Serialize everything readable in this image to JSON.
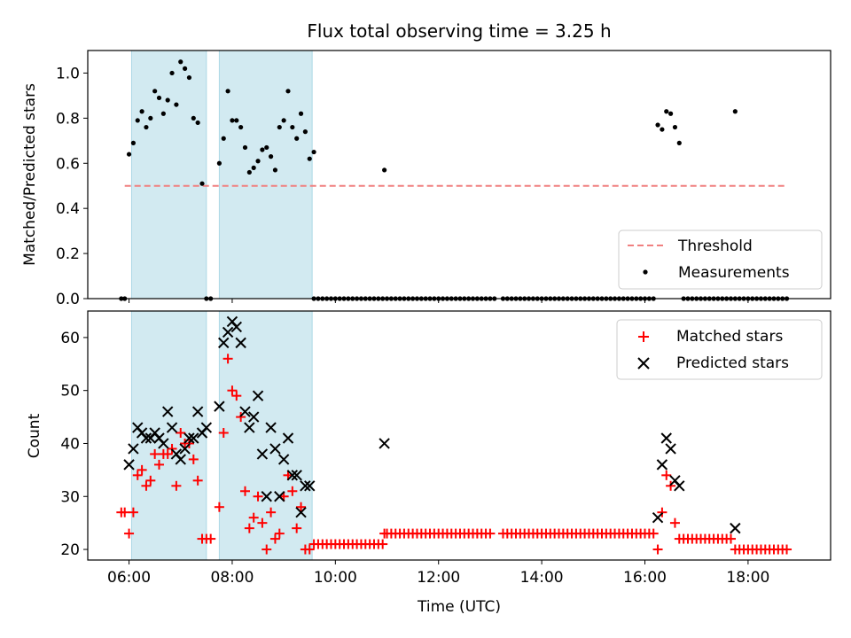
{
  "chart_data": [
    {
      "type": "scatter",
      "title": "Flux total observing time = 3.25 h",
      "ylabel": "Matched/Predicted stars",
      "xlabel": "",
      "ylim": [
        0,
        1.1
      ],
      "yticks": [
        "0.0",
        "0.2",
        "0.4",
        "0.6",
        "0.8",
        "1.0"
      ],
      "xlim_hours": [
        5.2,
        19.6
      ],
      "xticks": [
        "06:00",
        "08:00",
        "10:00",
        "12:00",
        "14:00",
        "16:00",
        "18:00"
      ],
      "shaded_spans": [
        [
          "06:03",
          "07:30"
        ],
        [
          "07:45",
          "09:33"
        ]
      ],
      "shade_color": "#add8e6",
      "threshold": {
        "name": "Threshold",
        "value": 0.5,
        "x_range": [
          "05:55",
          "18:45"
        ],
        "color": "#f08080"
      },
      "measurements": {
        "name": "Measurements",
        "color": "#000000",
        "points": [
          [
            "05:51",
            0
          ],
          [
            "05:55",
            0
          ],
          [
            "06:00",
            0.64
          ],
          [
            "06:05",
            0.69
          ],
          [
            "06:10",
            0.79
          ],
          [
            "06:15",
            0.83
          ],
          [
            "06:20",
            0.76
          ],
          [
            "06:25",
            0.8
          ],
          [
            "06:30",
            0.92
          ],
          [
            "06:35",
            0.89
          ],
          [
            "06:40",
            0.82
          ],
          [
            "06:45",
            0.88
          ],
          [
            "06:50",
            1.0
          ],
          [
            "06:55",
            0.86
          ],
          [
            "07:00",
            1.05
          ],
          [
            "07:05",
            1.02
          ],
          [
            "07:10",
            0.98
          ],
          [
            "07:15",
            0.8
          ],
          [
            "07:20",
            0.78
          ],
          [
            "07:25",
            0.51
          ],
          [
            "07:30",
            0
          ],
          [
            "07:35",
            0
          ],
          [
            "07:45",
            0.6
          ],
          [
            "07:50",
            0.71
          ],
          [
            "07:55",
            0.92
          ],
          [
            "08:00",
            0.79
          ],
          [
            "08:05",
            0.79
          ],
          [
            "08:10",
            0.76
          ],
          [
            "08:15",
            0.67
          ],
          [
            "08:20",
            0.56
          ],
          [
            "08:25",
            0.58
          ],
          [
            "08:30",
            0.61
          ],
          [
            "08:35",
            0.66
          ],
          [
            "08:40",
            0.67
          ],
          [
            "08:45",
            0.63
          ],
          [
            "08:50",
            0.57
          ],
          [
            "08:55",
            0.76
          ],
          [
            "09:00",
            0.79
          ],
          [
            "09:05",
            0.92
          ],
          [
            "09:10",
            0.76
          ],
          [
            "09:15",
            0.71
          ],
          [
            "09:20",
            0.82
          ],
          [
            "09:25",
            0.74
          ],
          [
            "09:30",
            0.62
          ],
          [
            "09:35",
            0.65
          ],
          [
            "10:57",
            0.57
          ],
          [
            "16:15",
            0.77
          ],
          [
            "16:20",
            0.75
          ],
          [
            "16:25",
            0.83
          ],
          [
            "16:30",
            0.82
          ],
          [
            "16:35",
            0.76
          ],
          [
            "16:40",
            0.69
          ],
          [
            "17:45",
            0.83
          ]
        ],
        "zero_ranges": [
          [
            "09:35",
            "10:30"
          ],
          [
            "10:35",
            "10:57"
          ],
          [
            "11:00",
            "12:40"
          ],
          [
            "12:45",
            "13:05"
          ],
          [
            "13:15",
            "16:10"
          ],
          [
            "16:45",
            "17:40"
          ],
          [
            "17:45",
            "18:45"
          ]
        ]
      },
      "legend": "lower-right"
    },
    {
      "type": "scatter",
      "title": "",
      "ylabel": "Count",
      "xlabel": "Time (UTC)",
      "ylim": [
        18,
        65
      ],
      "yticks": [
        "20",
        "30",
        "40",
        "50",
        "60"
      ],
      "xlim_hours": [
        5.2,
        19.6
      ],
      "xticks": [
        "06:00",
        "08:00",
        "10:00",
        "12:00",
        "14:00",
        "16:00",
        "18:00"
      ],
      "shaded_spans": [
        [
          "06:03",
          "07:30"
        ],
        [
          "07:45",
          "09:33"
        ]
      ],
      "series": [
        {
          "name": "Matched stars",
          "marker": "plus",
          "color": "#ff0000",
          "points": [
            [
              "05:51",
              27
            ],
            [
              "05:55",
              27
            ],
            [
              "06:00",
              23
            ],
            [
              "06:05",
              27
            ],
            [
              "06:10",
              34
            ],
            [
              "06:15",
              35
            ],
            [
              "06:20",
              32
            ],
            [
              "06:25",
              33
            ],
            [
              "06:30",
              38
            ],
            [
              "06:35",
              36
            ],
            [
              "06:40",
              38
            ],
            [
              "06:45",
              38
            ],
            [
              "06:50",
              39
            ],
            [
              "06:55",
              32
            ],
            [
              "07:00",
              42
            ],
            [
              "07:05",
              40
            ],
            [
              "07:10",
              40
            ],
            [
              "07:15",
              37
            ],
            [
              "07:20",
              33
            ],
            [
              "07:25",
              22
            ],
            [
              "07:30",
              22
            ],
            [
              "07:35",
              22
            ],
            [
              "07:45",
              28
            ],
            [
              "07:50",
              42
            ],
            [
              "07:55",
              56
            ],
            [
              "08:00",
              50
            ],
            [
              "08:05",
              49
            ],
            [
              "08:10",
              45
            ],
            [
              "08:15",
              31
            ],
            [
              "08:20",
              24
            ],
            [
              "08:25",
              26
            ],
            [
              "08:30",
              30
            ],
            [
              "08:35",
              25
            ],
            [
              "08:40",
              20
            ],
            [
              "08:45",
              27
            ],
            [
              "08:50",
              22
            ],
            [
              "08:55",
              23
            ],
            [
              "09:00",
              30
            ],
            [
              "09:05",
              34
            ],
            [
              "09:10",
              31
            ],
            [
              "09:15",
              24
            ],
            [
              "09:20",
              28
            ],
            [
              "09:25",
              20
            ],
            [
              "09:30",
              20
            ],
            [
              "09:35",
              21
            ],
            [
              "10:57",
              23
            ],
            [
              "16:15",
              20
            ],
            [
              "16:20",
              27
            ],
            [
              "16:25",
              34
            ],
            [
              "16:30",
              32
            ],
            [
              "16:35",
              25
            ],
            [
              "16:40",
              22
            ],
            [
              "17:45",
              20
            ]
          ],
          "baseline_runs": [
            {
              "from": "09:40",
              "to": "10:55",
              "value": 21
            },
            {
              "from": "11:00",
              "to": "12:40",
              "value": 23
            },
            {
              "from": "12:45",
              "to": "13:00",
              "value": 23
            },
            {
              "from": "13:15",
              "to": "16:10",
              "value": 23
            },
            {
              "from": "16:45",
              "to": "17:40",
              "value": 22
            },
            {
              "from": "17:50",
              "to": "18:45",
              "value": 20
            }
          ]
        },
        {
          "name": "Predicted stars",
          "marker": "x",
          "color": "#000000",
          "points": [
            [
              "06:00",
              36
            ],
            [
              "06:05",
              39
            ],
            [
              "06:10",
              43
            ],
            [
              "06:15",
              42
            ],
            [
              "06:20",
              41
            ],
            [
              "06:25",
              41
            ],
            [
              "06:30",
              42
            ],
            [
              "06:35",
              41
            ],
            [
              "06:40",
              40
            ],
            [
              "06:45",
              46
            ],
            [
              "06:50",
              43
            ],
            [
              "06:55",
              38
            ],
            [
              "07:00",
              37
            ],
            [
              "07:05",
              39
            ],
            [
              "07:10",
              41
            ],
            [
              "07:15",
              41
            ],
            [
              "07:20",
              46
            ],
            [
              "07:25",
              42
            ],
            [
              "07:30",
              43
            ],
            [
              "07:45",
              47
            ],
            [
              "07:50",
              59
            ],
            [
              "07:55",
              61
            ],
            [
              "08:00",
              63
            ],
            [
              "08:05",
              62
            ],
            [
              "08:10",
              59
            ],
            [
              "08:15",
              46
            ],
            [
              "08:20",
              43
            ],
            [
              "08:25",
              45
            ],
            [
              "08:30",
              49
            ],
            [
              "08:35",
              38
            ],
            [
              "08:40",
              30
            ],
            [
              "08:45",
              43
            ],
            [
              "08:50",
              39
            ],
            [
              "08:55",
              30
            ],
            [
              "09:00",
              37
            ],
            [
              "09:05",
              41
            ],
            [
              "09:10",
              34
            ],
            [
              "09:15",
              34
            ],
            [
              "09:20",
              27
            ],
            [
              "09:25",
              32
            ],
            [
              "09:30",
              32
            ],
            [
              "10:57",
              40
            ],
            [
              "16:15",
              26
            ],
            [
              "16:20",
              36
            ],
            [
              "16:25",
              41
            ],
            [
              "16:30",
              39
            ],
            [
              "16:35",
              33
            ],
            [
              "16:40",
              32
            ],
            [
              "17:45",
              24
            ]
          ]
        }
      ],
      "legend": "top-right"
    }
  ]
}
